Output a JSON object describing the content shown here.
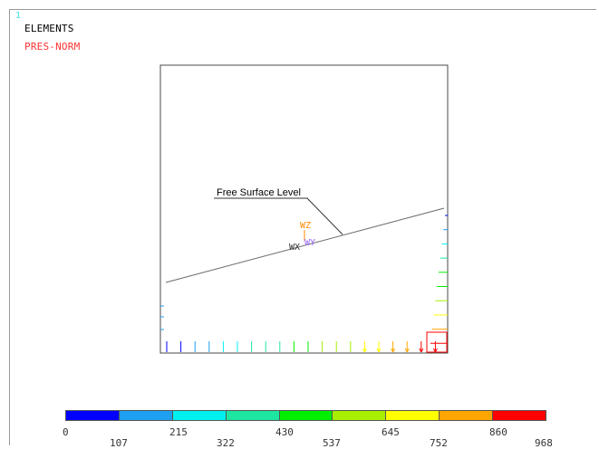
{
  "window": {
    "number": "1"
  },
  "labels": {
    "plot": "ELEMENTS",
    "load": "PRES-NORM"
  },
  "annotation": {
    "text": "Free Surface Level"
  },
  "triad": {
    "x": "WX",
    "y": "WY",
    "z": "WZ"
  },
  "legend": {
    "upper_ticks": [
      "0",
      "215",
      "430",
      "645",
      "860"
    ],
    "lower_ticks": [
      "107",
      "322",
      "537",
      "752",
      "968"
    ],
    "colors": [
      "#0000ff",
      "#1e9fef",
      "#00f0f0",
      "#1ee6a0",
      "#00ee00",
      "#a8ee00",
      "#ffff00",
      "#ffa500",
      "#ff0000"
    ]
  },
  "colors": {
    "window_number": "#40e0e0",
    "load_label": "#ff3333",
    "triad_x": "#333333",
    "triad_y": "#9966ff",
    "triad_z": "#ff8800"
  }
}
